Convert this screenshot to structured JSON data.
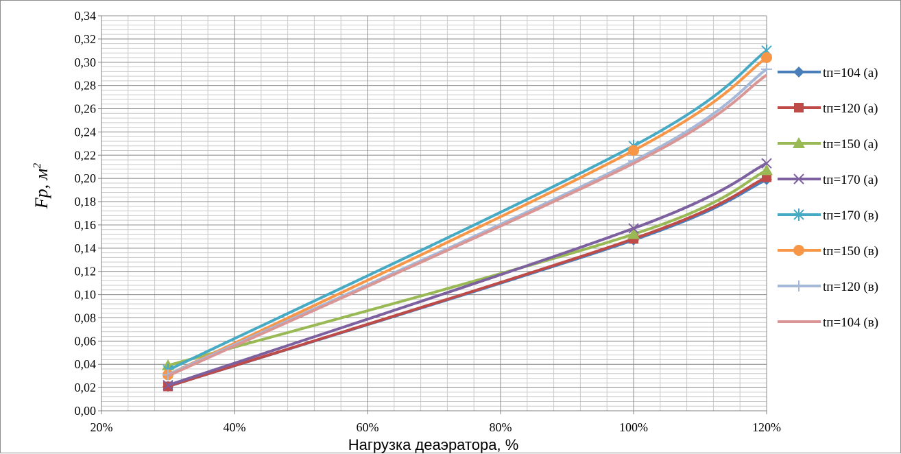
{
  "chart_data": {
    "type": "line",
    "title": "",
    "xlabel": "Нагрузка деаэратора, %",
    "ylabel": "Fp, м",
    "ylabel_superscript": "2",
    "x": [
      30,
      100,
      120
    ],
    "xlim": [
      20,
      120
    ],
    "ylim": [
      0,
      0.34
    ],
    "x_ticks": [
      "20%",
      "40%",
      "60%",
      "80%",
      "100%",
      "120%"
    ],
    "y_ticks": [
      "0,00",
      "0,02",
      "0,04",
      "0,06",
      "0,08",
      "0,10",
      "0,12",
      "0,14",
      "0,16",
      "0,18",
      "0,20",
      "0,22",
      "0,24",
      "0,26",
      "0,28",
      "0,30",
      "0,32",
      "0,34"
    ],
    "grid": true,
    "legend_position": "right",
    "series": [
      {
        "name": "tп=104 (а)",
        "marker": "diamond",
        "color": "#4a7ebb",
        "values": [
          0.021,
          0.147,
          0.199
        ]
      },
      {
        "name": "tп=120 (а)",
        "marker": "square",
        "color": "#be4b48",
        "values": [
          0.021,
          0.148,
          0.201
        ]
      },
      {
        "name": "tп=150 (а)",
        "marker": "triangle",
        "color": "#98b954",
        "values": [
          0.039,
          0.152,
          0.207
        ]
      },
      {
        "name": "tп=170 (а)",
        "marker": "x",
        "color": "#7d60a0",
        "values": [
          0.022,
          0.157,
          0.213
        ]
      },
      {
        "name": "tп=170 (в)",
        "marker": "asterisk",
        "color": "#46aac5",
        "values": [
          0.035,
          0.228,
          0.31
        ]
      },
      {
        "name": "tп=150 (в)",
        "marker": "circle",
        "color": "#f79646",
        "values": [
          0.031,
          0.224,
          0.304
        ]
      },
      {
        "name": "tп=120 (в)",
        "marker": "plus",
        "color": "#a5b8d8",
        "values": [
          0.031,
          0.215,
          0.294
        ]
      },
      {
        "name": "tп=104 (в)",
        "marker": "none",
        "color": "#d99694",
        "values": [
          0.03,
          0.213,
          0.289
        ]
      }
    ]
  }
}
